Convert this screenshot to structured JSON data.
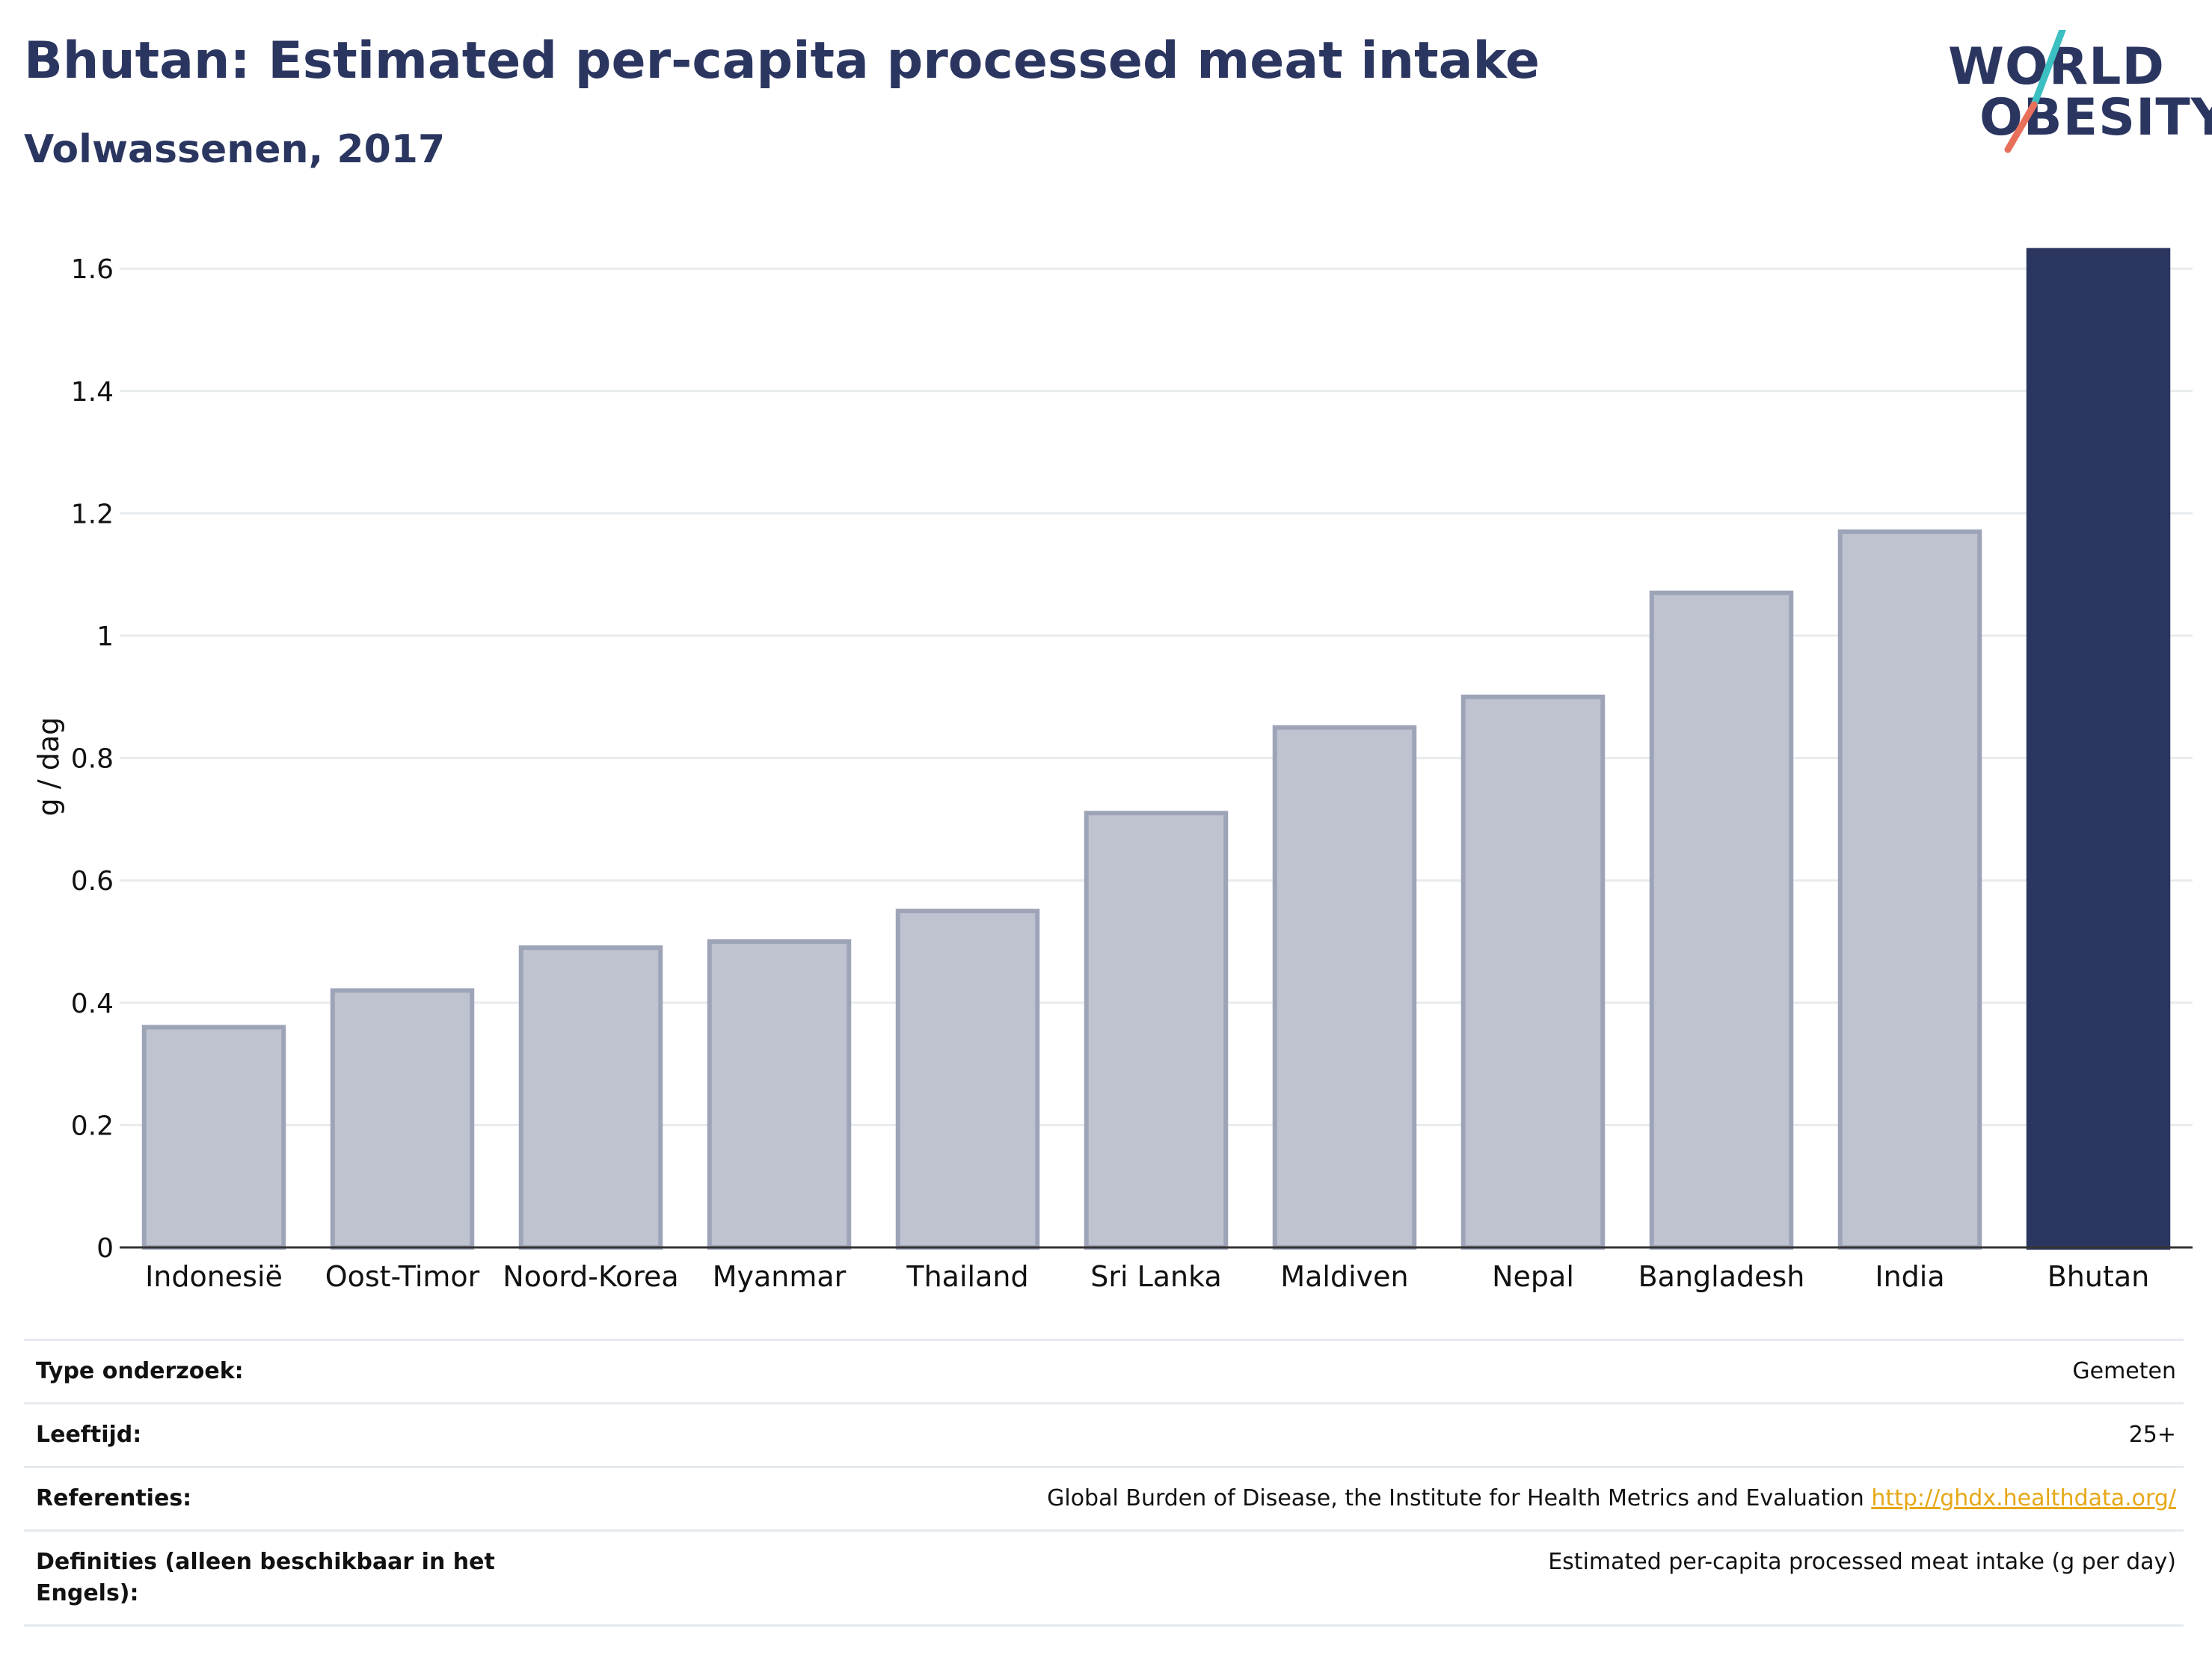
{
  "header": {
    "title": "Bhutan: Estimated per-capita processed meat intake",
    "subtitle": "Volwassenen, 2017"
  },
  "logo": {
    "line1": "WORLD",
    "line2": "OBESITY",
    "colors": {
      "text": "#2b3660",
      "slash_top": "#3bbfc0",
      "slash_bottom": "#e8705a"
    }
  },
  "chart_data": {
    "type": "bar",
    "categories": [
      "Indonesië",
      "Oost-Timor",
      "Noord-Korea",
      "Myanmar",
      "Thailand",
      "Sri Lanka",
      "Maldiven",
      "Nepal",
      "Bangladesh",
      "India",
      "Bhutan"
    ],
    "values": [
      0.36,
      0.42,
      0.49,
      0.5,
      0.55,
      0.71,
      0.85,
      0.9,
      1.07,
      1.17,
      1.63
    ],
    "highlight": "Bhutan",
    "ylabel": "g / dag",
    "ylim": [
      0,
      1.7
    ],
    "yticks": [
      0,
      0.2,
      0.4,
      0.6,
      0.8,
      1,
      1.2,
      1.4,
      1.6
    ],
    "ytick_labels": [
      "0",
      "0.2",
      "0.4",
      "0.6",
      "0.8",
      "1",
      "1.2",
      "1.4",
      "1.6"
    ],
    "grid": true,
    "colors": {
      "bar": "#bfc3d0",
      "bar_border": "#9ea4b8",
      "highlight": "#2b3660",
      "grid": "#e8ebee",
      "axis": "#333333"
    }
  },
  "info": {
    "rows": [
      {
        "label": "Type onderzoek:",
        "value": "Gemeten"
      },
      {
        "label": "Leeftijd:",
        "value": "25+"
      },
      {
        "label": "Referenties:",
        "value": "Global Burden of Disease, the Institute for Health Metrics and Evaluation",
        "link": "http://ghdx.healthdata.org/"
      },
      {
        "label": "Definities (alleen beschikbaar in het Engels):",
        "value": "Estimated per-capita processed meat intake (g per day)"
      }
    ]
  }
}
